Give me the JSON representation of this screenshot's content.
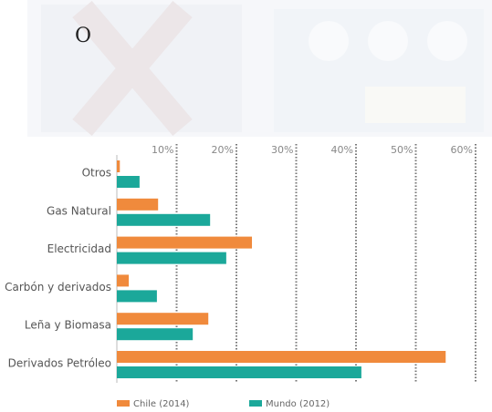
{
  "chart_data": {
    "type": "hbar",
    "annotation": "O",
    "categories": [
      "Otros",
      "Gas Natural",
      "Electricidad",
      "Carbón y derivados",
      "Leña y Biomasa",
      "Derivados Petróleo"
    ],
    "series": [
      {
        "name": "Chile (2014)",
        "color": "#f08a3c",
        "values": [
          0.5,
          6.9,
          22.6,
          2.0,
          15.3,
          55.0
        ]
      },
      {
        "name": "Mundo (2012)",
        "color": "#1ba89a",
        "values": [
          3.8,
          15.6,
          18.3,
          6.7,
          12.7,
          40.9
        ]
      }
    ],
    "xlim": [
      0,
      60
    ],
    "xticks": [
      {
        "value": 10,
        "label": "10%"
      },
      {
        "value": 20,
        "label": "20%"
      },
      {
        "value": 30,
        "label": "30%"
      },
      {
        "value": 40,
        "label": "40%"
      },
      {
        "value": 50,
        "label": "50%"
      },
      {
        "value": 60,
        "label": "60%"
      }
    ],
    "grid": true
  }
}
